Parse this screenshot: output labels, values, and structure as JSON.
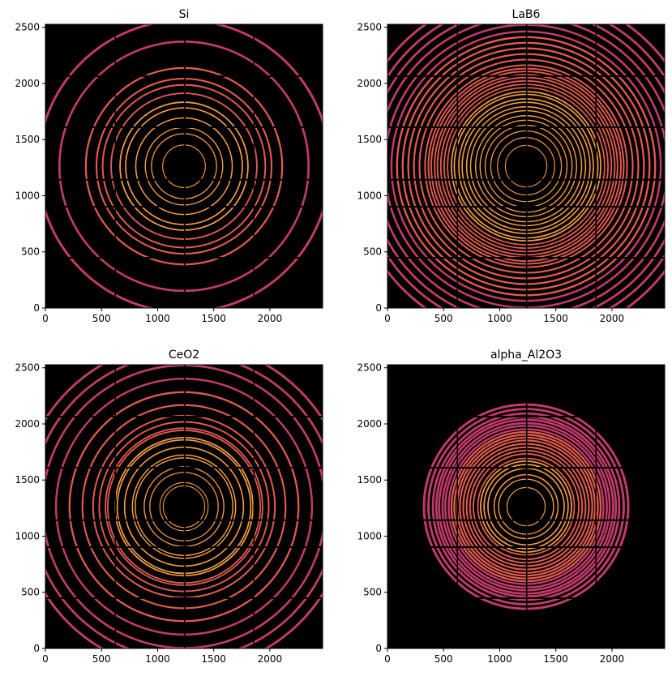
{
  "colors": {
    "background": "#000000",
    "ring_inner": "#f59b45",
    "ring_mid": "#e05a4e",
    "ring_outer": "#c13a6a",
    "axes": "#000000"
  },
  "chart_data": [
    {
      "type": "heatmap",
      "title": "Si",
      "xlabel": "",
      "ylabel": "",
      "xlim": [
        0,
        2470
      ],
      "ylim": [
        0,
        2527
      ],
      "xticks": [
        0,
        500,
        1000,
        1500,
        2000
      ],
      "yticks": [
        0,
        500,
        1000,
        1500,
        2000,
        2500
      ],
      "beam_center": [
        1235,
        1263
      ],
      "ring_radii": [
        190,
        290,
        345,
        430,
        520,
        570,
        650,
        725,
        780,
        875,
        1110,
        1300
      ],
      "grid": false
    },
    {
      "type": "heatmap",
      "title": "LaB6",
      "xlabel": "",
      "ylabel": "",
      "xlim": [
        0,
        2470
      ],
      "ylim": [
        0,
        2527
      ],
      "xticks": [
        0,
        500,
        1000,
        1500,
        2000
      ],
      "yticks": [
        0,
        500,
        1000,
        1500,
        2000,
        2500
      ],
      "beam_center": [
        1235,
        1263
      ],
      "ring_radii": [
        185,
        255,
        315,
        365,
        410,
        450,
        495,
        530,
        570,
        600,
        640,
        665,
        700,
        730,
        760,
        790,
        815,
        845,
        870,
        900,
        950,
        1000,
        1050,
        1100,
        1150,
        1200,
        1260,
        1330,
        1400,
        1470,
        1550
      ],
      "grid": false
    },
    {
      "type": "heatmap",
      "title": "CeO2",
      "xlabel": "",
      "ylabel": "",
      "xlim": [
        0,
        2470
      ],
      "ylim": [
        0,
        2527
      ],
      "xticks": [
        0,
        500,
        1000,
        1500,
        2000
      ],
      "yticks": [
        0,
        500,
        1000,
        1500,
        2000,
        2500
      ],
      "beam_center": [
        1235,
        1263
      ],
      "ring_radii": [
        185,
        215,
        305,
        355,
        435,
        460,
        530,
        595,
        615,
        680,
        700,
        755,
        810,
        905,
        1020,
        1140,
        1260,
        1360,
        1460
      ],
      "grid": false
    },
    {
      "type": "heatmap",
      "title": "alpha_Al2O3",
      "xlabel": "",
      "ylabel": "",
      "xlim": [
        0,
        2470
      ],
      "ylim": [
        0,
        2527
      ],
      "xticks": [
        0,
        500,
        1000,
        1500,
        2000
      ],
      "yticks": [
        0,
        500,
        1000,
        1500,
        2000,
        2500
      ],
      "beam_center": [
        1235,
        1263
      ],
      "ring_radii": [
        170,
        245,
        285,
        340,
        375,
        405,
        430,
        470,
        500,
        530,
        560,
        590,
        615,
        640,
        665,
        690,
        720,
        745,
        775,
        800,
        830,
        870,
        910
      ],
      "grid": false
    }
  ]
}
